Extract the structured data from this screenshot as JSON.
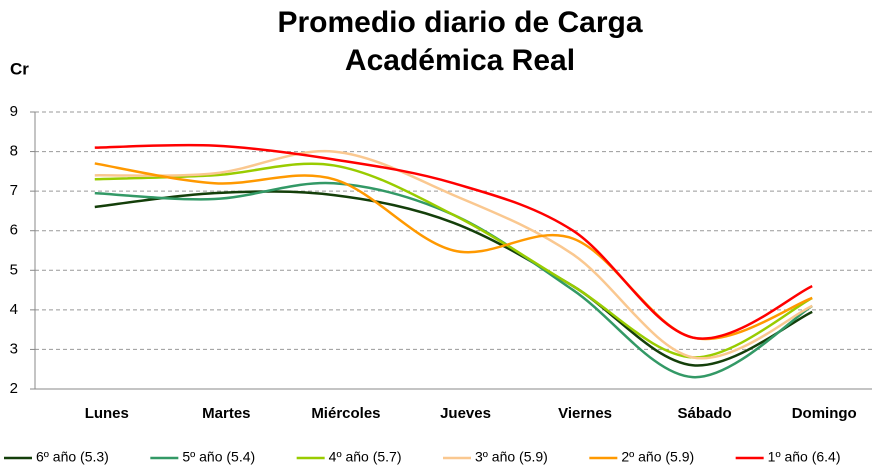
{
  "chart_data": {
    "type": "line",
    "title": "Promedio diario de Carga Académica Real",
    "y_label": "Cr",
    "categories": [
      "Lunes",
      "Martes",
      "Miércoles",
      "Jueves",
      "Viernes",
      "Sábado",
      "Domingo"
    ],
    "series": [
      {
        "name": "6º año (5.3)",
        "color": "#143f0a",
        "values": [
          6.6,
          6.95,
          6.9,
          6.2,
          4.6,
          2.6,
          3.95
        ]
      },
      {
        "name": "5º año (5.4)",
        "color": "#339966",
        "values": [
          6.95,
          6.8,
          7.2,
          6.4,
          4.5,
          2.3,
          4.1
        ]
      },
      {
        "name": "4º año (5.7)",
        "color": "#99cc00",
        "values": [
          7.3,
          7.4,
          7.65,
          6.4,
          4.6,
          2.8,
          4.3
        ]
      },
      {
        "name": "3º año (5.9)",
        "color": "#fac890",
        "values": [
          7.4,
          7.45,
          8.0,
          6.9,
          5.4,
          2.8,
          4.1
        ]
      },
      {
        "name": "2º año (5.9)",
        "color": "#ff9900",
        "values": [
          7.7,
          7.2,
          7.3,
          5.5,
          5.8,
          3.3,
          4.3
        ]
      },
      {
        "name": "1º año (6.4)",
        "color": "#ff0000",
        "values": [
          8.1,
          8.15,
          7.8,
          7.2,
          6.0,
          3.3,
          4.6
        ]
      }
    ],
    "ylim": [
      2,
      9
    ],
    "yticks": [
      2,
      3,
      4,
      5,
      6,
      7,
      8,
      9
    ],
    "grid": true,
    "smooth": true,
    "legend": "bottom"
  }
}
